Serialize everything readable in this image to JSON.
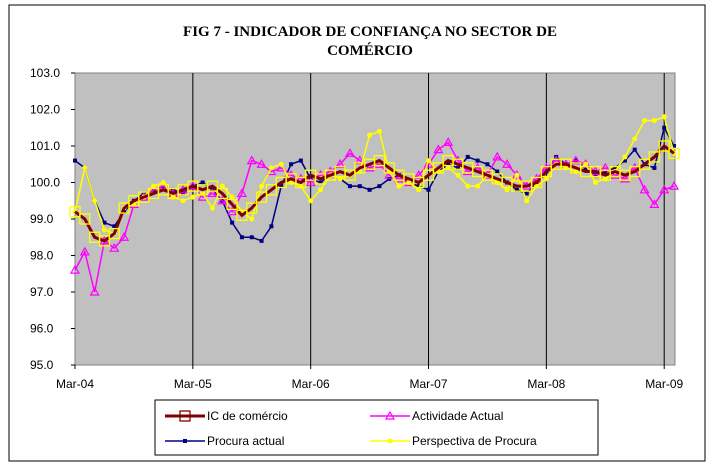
{
  "chart_data": {
    "type": "line",
    "title": [
      "FIG 7 - INDICADOR DE CONFIANÇA NO SECTOR DE",
      "COMÉRCIO"
    ],
    "categories": [
      "Mar-04",
      null,
      null,
      null,
      null,
      null,
      null,
      null,
      null,
      null,
      null,
      null,
      "Mar-05",
      null,
      null,
      null,
      null,
      null,
      null,
      null,
      null,
      null,
      null,
      null,
      "Mar-06",
      null,
      null,
      null,
      null,
      null,
      null,
      null,
      null,
      null,
      null,
      null,
      "Mar-07",
      null,
      null,
      null,
      null,
      null,
      null,
      null,
      null,
      null,
      null,
      null,
      "Mar-08",
      null,
      null,
      null,
      null,
      null,
      null,
      null,
      null,
      null,
      null,
      null,
      "Mar-09",
      null
    ],
    "series": [
      {
        "name": "IC de comércio",
        "color": "#800000",
        "values": [
          99.2,
          99.0,
          98.5,
          98.4,
          98.6,
          99.3,
          99.5,
          99.6,
          99.7,
          99.8,
          99.7,
          99.8,
          99.9,
          99.8,
          99.9,
          99.7,
          99.4,
          99.1,
          99.3,
          99.6,
          99.8,
          100.0,
          100.1,
          100.0,
          100.2,
          100.1,
          100.2,
          100.3,
          100.2,
          100.4,
          100.5,
          100.6,
          100.4,
          100.2,
          100.1,
          100.0,
          100.2,
          100.4,
          100.6,
          100.5,
          100.4,
          100.3,
          100.2,
          100.1,
          100.0,
          99.9,
          99.9,
          100.0,
          100.3,
          100.5,
          100.5,
          100.4,
          100.3,
          100.3,
          100.2,
          100.3,
          100.2,
          100.3,
          100.5,
          100.7,
          101.0,
          100.8
        ]
      },
      {
        "name": "Actividade Actual",
        "color": "#ff00ff",
        "values": [
          97.6,
          98.1,
          97.0,
          98.4,
          98.2,
          98.5,
          99.4,
          99.6,
          99.8,
          99.9,
          99.7,
          99.8,
          99.9,
          99.6,
          99.7,
          99.5,
          99.2,
          99.7,
          100.6,
          100.5,
          100.3,
          100.4,
          100.2,
          100.1,
          100.0,
          100.2,
          100.3,
          100.5,
          100.8,
          100.6,
          100.4,
          100.5,
          100.2,
          100.1,
          100.0,
          100.2,
          100.5,
          100.9,
          101.1,
          100.6,
          100.3,
          100.4,
          100.2,
          100.7,
          100.5,
          100.2,
          99.9,
          100.1,
          100.4,
          100.6,
          100.5,
          100.6,
          100.5,
          100.3,
          100.4,
          100.2,
          100.1,
          100.4,
          99.8,
          99.4,
          99.8,
          99.9
        ]
      },
      {
        "name": "Procura actual",
        "color": "#000080",
        "values": [
          100.6,
          100.4,
          99.5,
          98.9,
          98.8,
          99.2,
          99.5,
          99.7,
          99.8,
          99.9,
          99.8,
          99.7,
          99.9,
          100.0,
          99.8,
          99.5,
          98.9,
          98.5,
          98.5,
          98.4,
          98.8,
          99.9,
          100.5,
          100.6,
          100.1,
          100.0,
          100.2,
          100.1,
          99.9,
          99.9,
          99.8,
          99.9,
          100.1,
          100.2,
          100.0,
          99.9,
          99.8,
          100.3,
          100.5,
          100.4,
          100.7,
          100.6,
          100.5,
          100.3,
          100.0,
          99.8,
          99.7,
          100.0,
          100.3,
          100.7,
          100.5,
          100.6,
          100.4,
          100.2,
          100.3,
          100.4,
          100.6,
          100.9,
          100.5,
          100.4,
          101.5,
          101.0
        ]
      },
      {
        "name": "Perspectiva de Procura",
        "color": "#ffff00",
        "values": [
          99.2,
          100.4,
          99.5,
          98.7,
          98.6,
          99.3,
          99.4,
          99.6,
          99.9,
          100.0,
          99.6,
          99.5,
          99.6,
          99.7,
          99.3,
          99.9,
          99.6,
          99.2,
          99.0,
          99.9,
          100.4,
          100.5,
          100.0,
          99.9,
          99.5,
          99.8,
          100.2,
          100.1,
          100.2,
          100.3,
          101.3,
          101.4,
          100.3,
          99.9,
          100.0,
          99.8,
          100.6,
          100.3,
          100.4,
          100.2,
          99.9,
          99.9,
          100.2,
          100.0,
          99.8,
          100.2,
          99.5,
          99.9,
          100.1,
          100.5,
          100.4,
          100.3,
          100.5,
          100.0,
          100.1,
          100.3,
          100.7,
          101.2,
          101.7,
          101.7,
          101.8,
          100.8
        ]
      }
    ],
    "ylim": [
      95,
      103
    ],
    "yticks": [
      {
        "value": 95,
        "label": "95.0"
      },
      {
        "value": 96,
        "label": "96.0"
      },
      {
        "value": 97,
        "label": "97.0"
      },
      {
        "value": 98,
        "label": "98.0"
      },
      {
        "value": 99,
        "label": "99.0"
      },
      {
        "value": 100,
        "label": "100.0"
      },
      {
        "value": 101,
        "label": "101.0"
      },
      {
        "value": 102,
        "label": "102.0"
      },
      {
        "value": 103,
        "label": "103.0"
      }
    ],
    "legend": "bottom"
  }
}
